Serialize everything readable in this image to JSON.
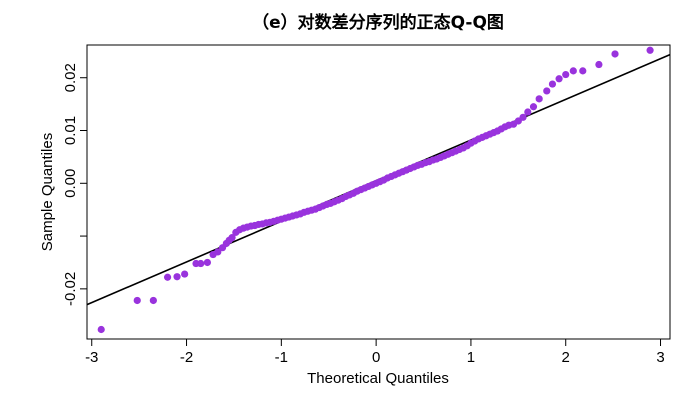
{
  "chart_data": {
    "type": "scatter",
    "title": "（e）对数差分序列的正态Q-Q图",
    "xlabel": "Theoretical Quantiles",
    "ylabel": "Sample Quantiles",
    "xlim": [
      -3.05,
      3.1
    ],
    "ylim": [
      -0.0295,
      0.0262
    ],
    "x_ticks": [
      -3,
      -2,
      -1,
      0,
      1,
      2,
      3
    ],
    "x_tick_labels": [
      "-3",
      "-2",
      "-1",
      "0",
      "1",
      "2",
      "3"
    ],
    "y_ticks": [
      -0.02,
      -0.01,
      0.0,
      0.01,
      0.02
    ],
    "y_tick_labels": [
      "-0.02",
      "",
      "0.00",
      "0.01",
      "0.02"
    ],
    "grid": false,
    "point_color": "#9933dd",
    "line_color": "#000000",
    "reference_line": {
      "intercept": 0.0005,
      "slope": 0.0077
    },
    "series": [
      {
        "values": [
          [
            -2.9,
            -0.0277
          ],
          [
            -2.52,
            -0.0222
          ],
          [
            -2.35,
            -0.0222
          ],
          [
            -2.2,
            -0.0178
          ],
          [
            -2.1,
            -0.0177
          ],
          [
            -2.02,
            -0.0172
          ],
          [
            -1.9,
            -0.0152
          ],
          [
            -1.85,
            -0.0152
          ],
          [
            -1.78,
            -0.015
          ],
          [
            -1.72,
            -0.0135
          ],
          [
            -1.67,
            -0.013
          ],
          [
            -1.62,
            -0.0122
          ],
          [
            -1.58,
            -0.0114
          ],
          [
            -1.55,
            -0.0108
          ],
          [
            -1.52,
            -0.0103
          ],
          [
            -1.48,
            -0.0093
          ],
          [
            -1.44,
            -0.0088
          ],
          [
            -1.4,
            -0.0085
          ],
          [
            -1.36,
            -0.0083
          ],
          [
            -1.32,
            -0.0081
          ],
          [
            -1.28,
            -0.008
          ],
          [
            -1.24,
            -0.0078
          ],
          [
            -1.2,
            -0.0077
          ],
          [
            -1.16,
            -0.0075
          ],
          [
            -1.12,
            -0.0074
          ],
          [
            -1.08,
            -0.0072
          ],
          [
            -1.04,
            -0.007
          ],
          [
            -1.0,
            -0.0068
          ],
          [
            -0.96,
            -0.0066
          ],
          [
            -0.92,
            -0.0064
          ],
          [
            -0.88,
            -0.0062
          ],
          [
            -0.84,
            -0.006
          ],
          [
            -0.8,
            -0.0058
          ],
          [
            -0.76,
            -0.0055
          ],
          [
            -0.72,
            -0.0053
          ],
          [
            -0.68,
            -0.0051
          ],
          [
            -0.64,
            -0.0049
          ],
          [
            -0.6,
            -0.0046
          ],
          [
            -0.56,
            -0.0043
          ],
          [
            -0.52,
            -0.004
          ],
          [
            -0.48,
            -0.0038
          ],
          [
            -0.44,
            -0.0035
          ],
          [
            -0.4,
            -0.0032
          ],
          [
            -0.36,
            -0.0029
          ],
          [
            -0.32,
            -0.0025
          ],
          [
            -0.28,
            -0.0022
          ],
          [
            -0.24,
            -0.0019
          ],
          [
            -0.2,
            -0.0015
          ],
          [
            -0.16,
            -0.0012
          ],
          [
            -0.12,
            -0.0009
          ],
          [
            -0.08,
            -0.0006
          ],
          [
            -0.04,
            -0.0003
          ],
          [
            0.0,
            0.0
          ],
          [
            0.04,
            0.0003
          ],
          [
            0.08,
            0.0006
          ],
          [
            0.12,
            0.001
          ],
          [
            0.16,
            0.0013
          ],
          [
            0.2,
            0.0016
          ],
          [
            0.24,
            0.0019
          ],
          [
            0.28,
            0.0022
          ],
          [
            0.32,
            0.0025
          ],
          [
            0.36,
            0.0028
          ],
          [
            0.4,
            0.0031
          ],
          [
            0.44,
            0.0034
          ],
          [
            0.48,
            0.0036
          ],
          [
            0.52,
            0.0039
          ],
          [
            0.56,
            0.0041
          ],
          [
            0.6,
            0.0044
          ],
          [
            0.64,
            0.0046
          ],
          [
            0.68,
            0.0049
          ],
          [
            0.72,
            0.0052
          ],
          [
            0.76,
            0.0055
          ],
          [
            0.8,
            0.0058
          ],
          [
            0.84,
            0.0061
          ],
          [
            0.88,
            0.0064
          ],
          [
            0.92,
            0.0067
          ],
          [
            0.96,
            0.0071
          ],
          [
            1.0,
            0.0076
          ],
          [
            1.04,
            0.008
          ],
          [
            1.08,
            0.0084
          ],
          [
            1.12,
            0.0087
          ],
          [
            1.16,
            0.009
          ],
          [
            1.2,
            0.0093
          ],
          [
            1.24,
            0.0096
          ],
          [
            1.28,
            0.0099
          ],
          [
            1.32,
            0.0103
          ],
          [
            1.36,
            0.0107
          ],
          [
            1.4,
            0.011
          ],
          [
            1.45,
            0.0112
          ],
          [
            1.5,
            0.0118
          ],
          [
            1.55,
            0.0125
          ],
          [
            1.6,
            0.0135
          ],
          [
            1.66,
            0.0145
          ],
          [
            1.72,
            0.016
          ],
          [
            1.8,
            0.0175
          ],
          [
            1.86,
            0.0188
          ],
          [
            1.93,
            0.0198
          ],
          [
            2.0,
            0.0206
          ],
          [
            2.08,
            0.0213
          ],
          [
            2.18,
            0.0213
          ],
          [
            2.35,
            0.0225
          ],
          [
            2.52,
            0.0245
          ],
          [
            2.89,
            0.0252
          ]
        ]
      }
    ]
  }
}
